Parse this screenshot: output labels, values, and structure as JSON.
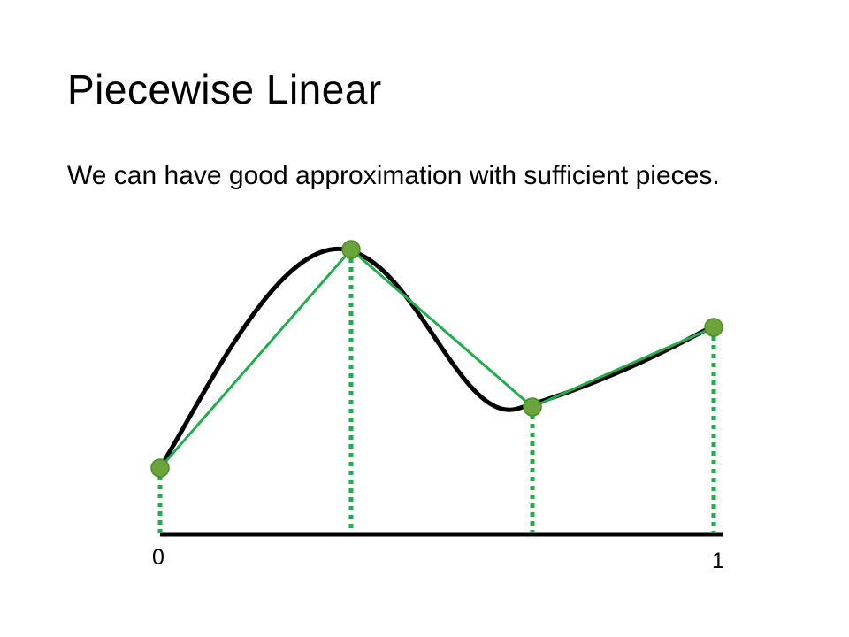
{
  "slide": {
    "title": "Piecewise Linear",
    "subtitle": "We can have good approximation with sufficient pieces."
  },
  "diagram": {
    "x_axis_labels": [
      "0",
      "1"
    ],
    "colors": {
      "curve": "#000000",
      "approximation": "#20ad4b",
      "knot_fill": "#6aa43a",
      "knot_stroke": "#4f8a2b",
      "drop_lines": "#20ad4b",
      "axis": "#000000"
    }
  }
}
